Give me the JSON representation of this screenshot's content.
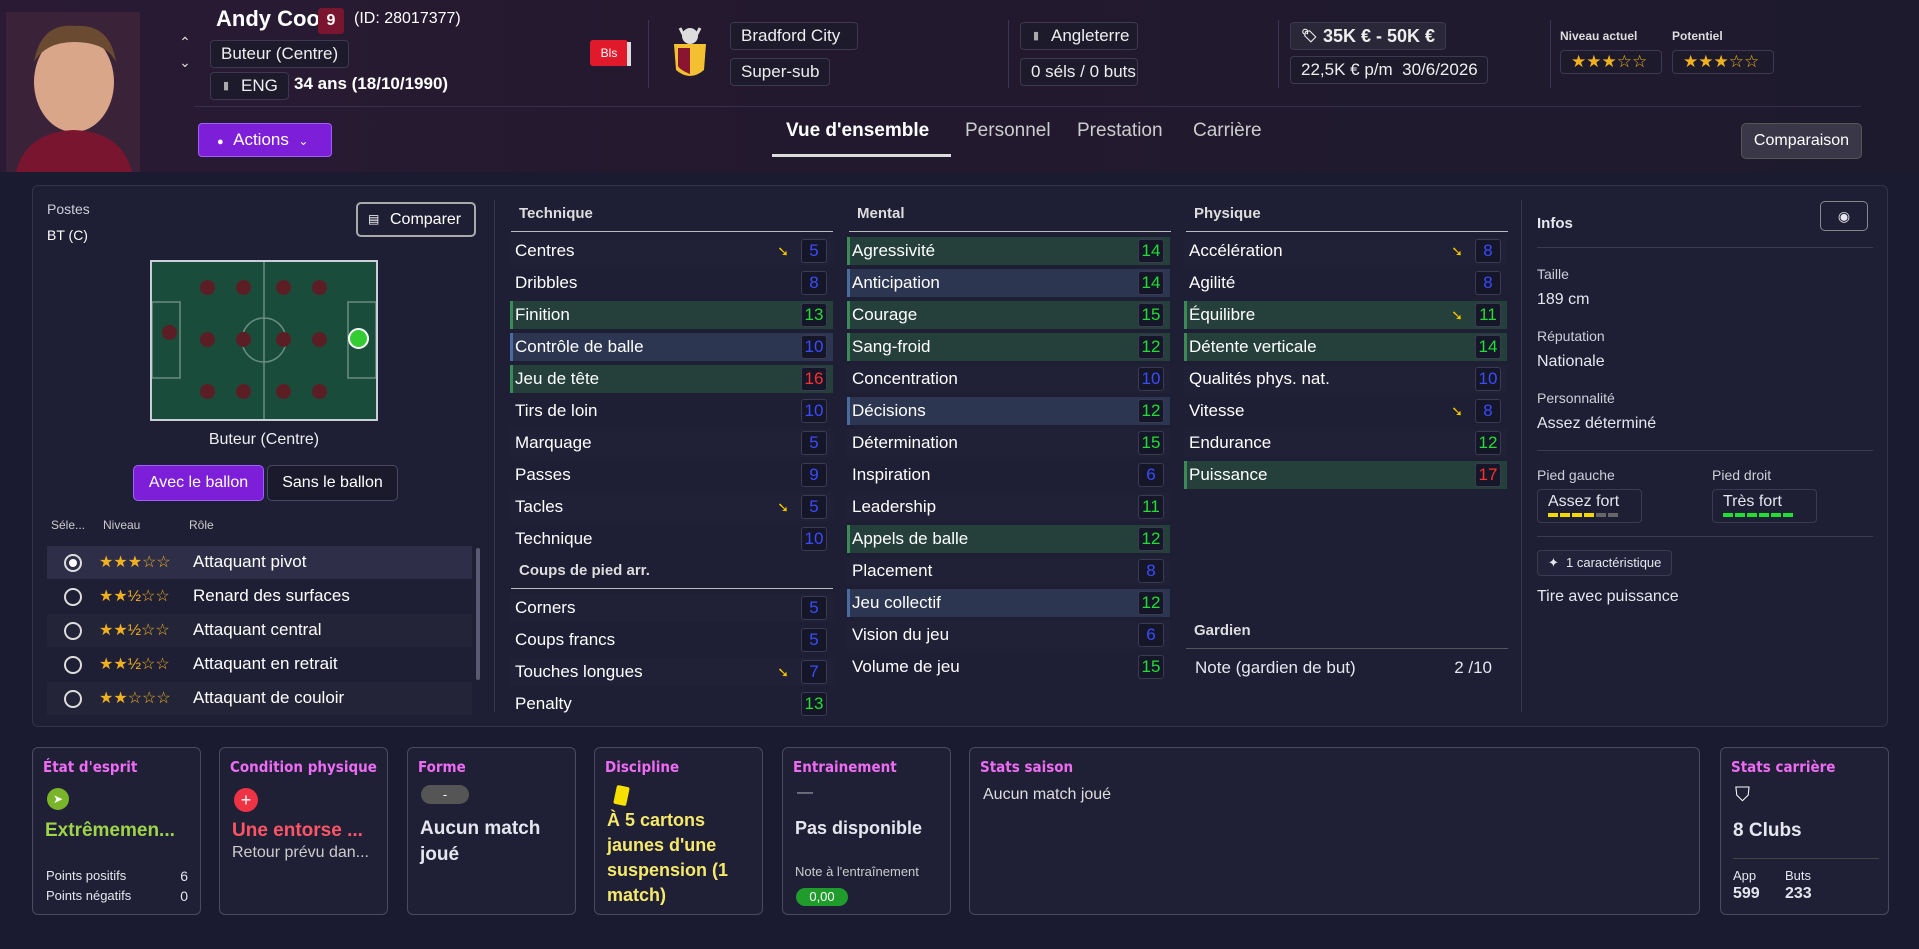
{
  "header": {
    "name": "Andy Cook",
    "number": "9",
    "id": "(ID: 28017377)",
    "position": "Buteur (Centre)",
    "nation_code": "ENG",
    "age": "34 ans (18/10/1990)",
    "badge": "Bls",
    "club": "Bradford City",
    "squad_role": "Super-sub",
    "country": "Angleterre",
    "caps": "0 séls / 0 buts",
    "value": "35K € - 50K €",
    "wage": "22,5K € p/m",
    "contract_end": "30/6/2026",
    "current_ability_label": "Niveau actuel",
    "potential_label": "Potentiel",
    "current_stars": "★★★☆☆",
    "potential_stars": "★★★☆☆",
    "actions_label": "Actions",
    "tabs": [
      "Vue d'ensemble",
      "Personnel",
      "Prestation",
      "Carrière"
    ],
    "compare_label": "Comparaison"
  },
  "positions": {
    "title": "Postes",
    "value": "BT (C)",
    "compare": "Comparer",
    "pitch_label": "Buteur (Centre)",
    "with_ball": "Avec le ballon",
    "without_ball": "Sans le ballon",
    "col_select": "Séle...",
    "col_level": "Niveau",
    "col_role": "Rôle",
    "roles": [
      {
        "stars": "★★★☆☆",
        "name": "Attaquant pivot"
      },
      {
        "stars": "★★½☆☆",
        "name": "Renard des surfaces"
      },
      {
        "stars": "★★½☆☆",
        "name": "Attaquant central"
      },
      {
        "stars": "★★½☆☆",
        "name": "Attaquant en retrait"
      },
      {
        "stars": "★★☆☆☆",
        "name": "Attaquant de couloir"
      }
    ]
  },
  "attributes": {
    "technique_title": "Technique",
    "mental_title": "Mental",
    "physique_title": "Physique",
    "setpieces_title": "Coups de pied arr.",
    "gk_title": "Gardien",
    "technique": [
      [
        "Centres",
        "5",
        1,
        0
      ],
      [
        "Dribbles",
        "8",
        0,
        0
      ],
      [
        "Finition",
        "13",
        0,
        1
      ],
      [
        "Contrôle de balle",
        "10",
        0,
        2
      ],
      [
        "Jeu de tête",
        "16",
        0,
        1
      ],
      [
        "Tirs de loin",
        "10",
        0,
        0
      ],
      [
        "Marquage",
        "5",
        0,
        0
      ],
      [
        "Passes",
        "9",
        0,
        0
      ],
      [
        "Tacles",
        "5",
        1,
        0
      ],
      [
        "Technique",
        "10",
        0,
        0
      ]
    ],
    "setpieces": [
      [
        "Corners",
        "5",
        0,
        0
      ],
      [
        "Coups francs",
        "5",
        0,
        0
      ],
      [
        "Touches longues",
        "7",
        1,
        0
      ],
      [
        "Penalty",
        "13",
        0,
        0
      ]
    ],
    "mental": [
      [
        "Agressivité",
        "14",
        0,
        1
      ],
      [
        "Anticipation",
        "14",
        0,
        2
      ],
      [
        "Courage",
        "15",
        0,
        1
      ],
      [
        "Sang-froid",
        "12",
        0,
        1
      ],
      [
        "Concentration",
        "10",
        0,
        0
      ],
      [
        "Décisions",
        "12",
        0,
        2
      ],
      [
        "Détermination",
        "15",
        0,
        0
      ],
      [
        "Inspiration",
        "6",
        0,
        0
      ],
      [
        "Leadership",
        "11",
        0,
        0
      ],
      [
        "Appels de balle",
        "12",
        0,
        1
      ],
      [
        "Placement",
        "8",
        0,
        0
      ],
      [
        "Jeu collectif",
        "12",
        0,
        2
      ],
      [
        "Vision du jeu",
        "6",
        0,
        0
      ],
      [
        "Volume de jeu",
        "15",
        0,
        0
      ]
    ],
    "physique": [
      [
        "Accélération",
        "8",
        1,
        0
      ],
      [
        "Agilité",
        "8",
        0,
        0
      ],
      [
        "Équilibre",
        "11",
        1,
        1
      ],
      [
        "Détente verticale",
        "14",
        0,
        1
      ],
      [
        "Qualités phys. nat.",
        "10",
        0,
        0
      ],
      [
        "Vitesse",
        "8",
        1,
        0
      ],
      [
        "Endurance",
        "12",
        0,
        0
      ],
      [
        "Puissance",
        "17",
        0,
        1
      ]
    ],
    "gk_label": "Note (gardien de but)",
    "gk_value": "2 /10"
  },
  "info": {
    "title": "Infos",
    "height_label": "Taille",
    "height": "189 cm",
    "rep_label": "Réputation",
    "rep": "Nationale",
    "pers_label": "Personnalité",
    "pers": "Assez déterminé",
    "left_foot_label": "Pied gauche",
    "left_foot": "Assez fort",
    "right_foot_label": "Pied droit",
    "right_foot": "Très fort",
    "traits_count": "1 caractéristique",
    "trait": "Tire avec puissance"
  },
  "bottom": {
    "morale_t": "État d'esprit",
    "morale": "Extrêmemen...",
    "pos_label": "Points positifs",
    "pos": "6",
    "neg_label": "Points négatifs",
    "neg": "0",
    "cond_t": "Condition physique",
    "cond": "Une entorse ...",
    "cond_sub": "Retour prévu dan...",
    "form_t": "Forme",
    "form_badge": "-",
    "form": "Aucun match joué",
    "disc_t": "Discipline",
    "disc": "À 5 cartons jaunes d'une suspension (1 match)",
    "train_t": "Entrainement",
    "train_dash": "—",
    "train": "Pas disponible",
    "train_note_label": "Note à l'entraînement",
    "train_note": "0,00",
    "season_t": "Stats saison",
    "season": "Aucun match joué",
    "career_t": "Stats carrière",
    "career_clubs": "8 Clubs",
    "apps_label": "App",
    "apps": "599",
    "goals_label": "Buts",
    "goals": "233"
  },
  "colors": {
    "accent": "#7d1ed8",
    "green": "#22dd33",
    "blue": "#3a4cff",
    "red": "#ff3030",
    "pink": "#ee6cf4"
  }
}
